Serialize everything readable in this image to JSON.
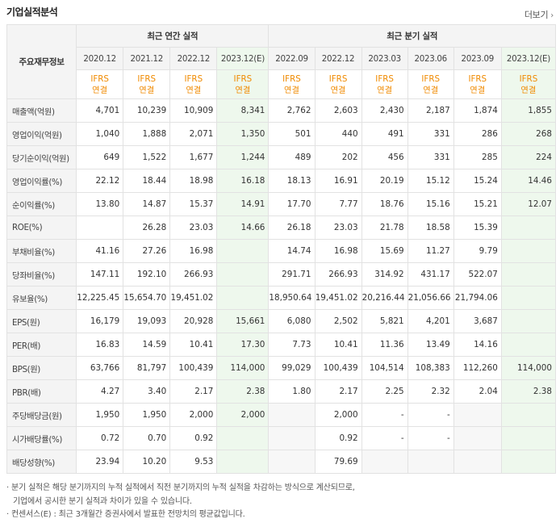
{
  "header": {
    "title": "기업실적분석",
    "more_label": "더보기"
  },
  "table": {
    "row_header_label": "주요재무정보",
    "annual_group_label": "최근 연간 실적",
    "quarter_group_label": "최근 분기 실적",
    "periods": [
      "2020.12",
      "2021.12",
      "2022.12",
      "2023.12(E)",
      "2022.09",
      "2022.12",
      "2023.03",
      "2023.06",
      "2023.09",
      "2023.12(E)"
    ],
    "ifrs": [
      "IFRS",
      "IFRS",
      "IFRS",
      "IFRS",
      "IFRS",
      "IFRS",
      "IFRS",
      "IFRS",
      "IFRS",
      "IFRS"
    ],
    "basis": [
      "연결",
      "연결",
      "연결",
      "연결",
      "연결",
      "연결",
      "연결",
      "연결",
      "연결",
      "연결"
    ],
    "rows": [
      {
        "label": "매출액(억원)",
        "values": [
          "4,701",
          "10,239",
          "10,909",
          "8,341",
          "2,762",
          "2,603",
          "2,430",
          "2,187",
          "1,874",
          "1,855"
        ]
      },
      {
        "label": "영업이익(억원)",
        "values": [
          "1,040",
          "1,888",
          "2,071",
          "1,350",
          "501",
          "440",
          "491",
          "331",
          "286",
          "268"
        ]
      },
      {
        "label": "당기순이익(억원)",
        "values": [
          "649",
          "1,522",
          "1,677",
          "1,244",
          "489",
          "202",
          "456",
          "331",
          "285",
          "224"
        ]
      },
      {
        "label": "영업이익률(%)",
        "values": [
          "22.12",
          "18.44",
          "18.98",
          "16.18",
          "18.13",
          "16.91",
          "20.19",
          "15.12",
          "15.24",
          "14.46"
        ]
      },
      {
        "label": "순이익률(%)",
        "values": [
          "13.80",
          "14.87",
          "15.37",
          "14.91",
          "17.70",
          "7.77",
          "18.76",
          "15.16",
          "15.21",
          "12.07"
        ]
      },
      {
        "label": "ROE(%)",
        "values": [
          "",
          "26.28",
          "23.03",
          "14.66",
          "26.18",
          "23.03",
          "21.78",
          "18.58",
          "15.39",
          ""
        ]
      },
      {
        "label": "부채비율(%)",
        "values": [
          "41.16",
          "27.26",
          "16.98",
          "",
          "14.74",
          "16.98",
          "15.69",
          "11.27",
          "9.79",
          ""
        ]
      },
      {
        "label": "당좌비율(%)",
        "values": [
          "147.11",
          "192.10",
          "266.93",
          "",
          "291.71",
          "266.93",
          "314.92",
          "431.17",
          "522.07",
          ""
        ]
      },
      {
        "label": "유보율(%)",
        "values": [
          "12,225.45",
          "15,654.70",
          "19,451.02",
          "",
          "18,950.64",
          "19,451.02",
          "20,216.44",
          "21,056.66",
          "21,794.06",
          ""
        ]
      },
      {
        "label": "EPS(원)",
        "values": [
          "16,179",
          "19,093",
          "20,928",
          "15,661",
          "6,080",
          "2,502",
          "5,821",
          "4,201",
          "3,687",
          ""
        ]
      },
      {
        "label": "PER(배)",
        "values": [
          "16.83",
          "14.59",
          "10.41",
          "17.30",
          "7.73",
          "10.41",
          "11.36",
          "13.49",
          "14.16",
          ""
        ]
      },
      {
        "label": "BPS(원)",
        "values": [
          "63,766",
          "81,797",
          "100,439",
          "114,000",
          "99,029",
          "100,439",
          "104,514",
          "108,383",
          "112,260",
          "114,000"
        ]
      },
      {
        "label": "PBR(배)",
        "values": [
          "4.27",
          "3.40",
          "2.17",
          "2.38",
          "1.80",
          "2.17",
          "2.25",
          "2.32",
          "2.04",
          "2.38"
        ]
      },
      {
        "label": "주당배당금(원)",
        "values": [
          "1,950",
          "1,950",
          "2,000",
          "2,000",
          "",
          "2,000",
          "-",
          "-",
          "",
          ""
        ]
      },
      {
        "label": "시가배당률(%)",
        "values": [
          "0.72",
          "0.70",
          "0.92",
          "",
          "",
          "0.92",
          "-",
          "-",
          "",
          ""
        ]
      },
      {
        "label": "배당성향(%)",
        "values": [
          "23.94",
          "10.20",
          "9.53",
          "",
          "",
          "79.69",
          "",
          "",
          "",
          ""
        ]
      }
    ]
  },
  "notes": {
    "line1": "분기 실적은 해당 분기까지의 누적 실적에서 직전 분기까지의 누적 실적을 차감하는 방식으로 계산되므로,",
    "line2": "기업에서 공시한 분기 실적과 차이가 있을 수 있습니다.",
    "line3": "컨센서스(E) : 최근 3개월간 증권사에서 발표한 전망치의 평균값입니다."
  },
  "colors": {
    "ifrs_orange": "#f08a00",
    "estimate_bg": "#eef8ed",
    "header_bg": "#f4f4f4"
  }
}
